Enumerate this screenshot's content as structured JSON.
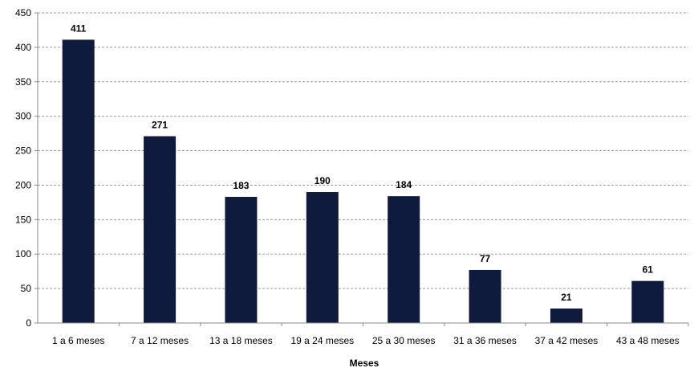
{
  "chart_data": {
    "type": "bar",
    "categories": [
      "1 a 6 meses",
      "7 a 12 meses",
      "13 a 18 meses",
      "19 a 24 meses",
      "25 a 30 meses",
      "31 a 36 meses",
      "37 a 42 meses",
      "43 a 48 meses"
    ],
    "values": [
      411,
      271,
      183,
      190,
      184,
      77,
      21,
      61
    ],
    "data_labels": [
      "411",
      "271",
      "183",
      "190",
      "184",
      "77",
      "21",
      "61"
    ],
    "xlabel": "Meses",
    "ylabel": "",
    "ylim": [
      0,
      450
    ],
    "yticks": [
      0,
      50,
      100,
      150,
      200,
      250,
      300,
      350,
      400,
      450
    ],
    "grid": true,
    "legend": "none",
    "bar_color": "#0f1b3d"
  }
}
